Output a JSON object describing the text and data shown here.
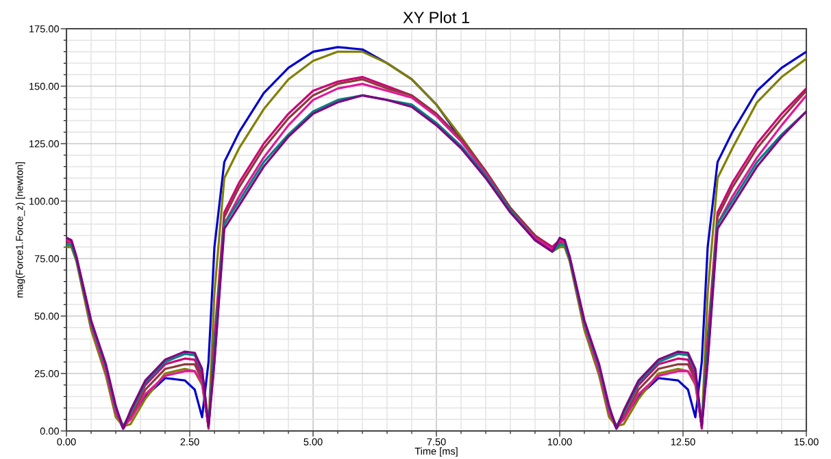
{
  "chart_data": {
    "type": "line",
    "title": "XY Plot 1",
    "xlabel": "Time [ms]",
    "ylabel": "mag(Force1.Force_z) [newton]",
    "x": [
      0,
      0.1,
      0.2,
      0.5,
      0.8,
      1.0,
      1.15,
      1.3,
      1.6,
      2.0,
      2.4,
      2.6,
      2.75,
      2.88,
      3.0,
      3.2,
      3.5,
      4.0,
      4.5,
      5.0,
      5.5,
      6.0,
      6.5,
      7.0,
      7.5,
      8.0,
      8.5,
      9.0,
      9.5,
      9.85,
      10.0,
      10.1,
      10.2,
      10.5,
      10.8,
      11.0,
      11.15,
      11.3,
      11.6,
      12.0,
      12.4,
      12.6,
      12.75,
      12.88,
      13.0,
      13.2,
      13.5,
      14.0,
      14.5,
      15.0
    ],
    "series": [
      {
        "color": "#0000cc",
        "values": [
          null,
          null,
          null,
          null,
          null,
          8,
          1,
          6,
          15,
          23,
          22,
          18,
          6,
          30,
          80,
          117,
          130,
          147,
          158,
          165,
          167,
          166,
          160,
          153,
          142,
          127,
          112,
          96,
          84,
          80,
          83,
          83,
          75,
          45,
          25,
          8,
          1,
          6,
          15,
          23,
          22,
          18,
          6,
          30,
          80,
          117,
          130,
          148,
          158,
          165
        ]
      },
      {
        "color": "#808000",
        "values": [
          80,
          80,
          74,
          44,
          24,
          6,
          2,
          3,
          14,
          25,
          27,
          26,
          20,
          2,
          60,
          110,
          123,
          140,
          153,
          161,
          165,
          165,
          160,
          153,
          142,
          128,
          113,
          97,
          85,
          78,
          80,
          80,
          74,
          44,
          24,
          6,
          2,
          3,
          14,
          25,
          27,
          26,
          20,
          2,
          60,
          110,
          123,
          143,
          154,
          162
        ]
      },
      {
        "color": "#cc0077",
        "values": [
          84,
          83,
          76,
          48,
          28,
          10,
          1,
          8,
          20,
          29,
          31.5,
          31,
          24,
          1,
          40,
          95,
          108,
          125,
          138,
          148,
          152,
          154,
          150,
          146,
          138,
          127,
          113,
          97,
          85,
          80,
          83,
          83,
          76,
          48,
          28,
          10,
          1,
          8,
          20,
          29,
          31.5,
          31,
          24,
          1,
          40,
          95,
          108,
          125,
          138,
          149
        ]
      },
      {
        "color": "#8b3a3a",
        "values": [
          82,
          82,
          75,
          47,
          27,
          9,
          2,
          6,
          18,
          27,
          29,
          29,
          22,
          2,
          35,
          93,
          106,
          123,
          136,
          146,
          151,
          153,
          149,
          146,
          138,
          127,
          113,
          97,
          85,
          79,
          82,
          82,
          75,
          47,
          27,
          9,
          2,
          6,
          18,
          27,
          29,
          29,
          22,
          2,
          35,
          93,
          106,
          123,
          136,
          148
        ]
      },
      {
        "color": "#e0189a",
        "values": [
          83,
          82,
          75,
          46,
          26,
          8,
          2,
          5,
          16,
          24,
          26,
          26,
          21,
          2,
          30,
          90,
          102,
          119,
          133,
          144,
          149,
          151,
          148,
          145,
          137,
          126,
          112,
          96,
          84,
          79,
          83,
          82,
          75,
          46,
          26,
          8,
          2,
          5,
          16,
          24,
          26,
          26,
          21,
          2,
          30,
          90,
          102,
          119,
          133,
          146
        ]
      },
      {
        "color": "#008080",
        "values": [
          81,
          81,
          75,
          47,
          28,
          10,
          2,
          8,
          21,
          30,
          33.5,
          33,
          26,
          3,
          35,
          90,
          100,
          117,
          129,
          139,
          144,
          146,
          144,
          142,
          134,
          124,
          111,
          96,
          83,
          78,
          81,
          81,
          75,
          47,
          28,
          10,
          2,
          8,
          21,
          30,
          33.5,
          33,
          26,
          3,
          35,
          90,
          100,
          117,
          129,
          139
        ]
      },
      {
        "color": "#800080",
        "values": [
          84,
          83,
          76,
          48,
          29,
          11,
          1,
          9,
          22,
          31,
          34.5,
          34,
          27,
          2,
          30,
          88,
          98,
          115,
          128,
          138,
          143,
          146,
          144,
          141,
          133,
          123,
          110,
          95,
          83,
          78,
          84,
          83,
          76,
          48,
          29,
          11,
          1,
          9,
          22,
          31,
          34.5,
          34,
          27,
          2,
          30,
          88,
          98,
          115,
          128,
          139
        ]
      }
    ],
    "xlim": [
      0,
      15
    ],
    "xticks": [
      {
        "value": 0,
        "label": "0.00"
      },
      {
        "value": 0.5,
        "label": null
      },
      {
        "value": 1,
        "label": null
      },
      {
        "value": 1.5,
        "label": null
      },
      {
        "value": 2,
        "label": null
      },
      {
        "value": 2.5,
        "label": "2.50"
      },
      {
        "value": 3,
        "label": null
      },
      {
        "value": 3.5,
        "label": null
      },
      {
        "value": 4,
        "label": null
      },
      {
        "value": 4.5,
        "label": null
      },
      {
        "value": 5,
        "label": "5.00"
      },
      {
        "value": 5.5,
        "label": null
      },
      {
        "value": 6,
        "label": null
      },
      {
        "value": 6.5,
        "label": null
      },
      {
        "value": 7,
        "label": null
      },
      {
        "value": 7.5,
        "label": "7.50"
      },
      {
        "value": 8,
        "label": null
      },
      {
        "value": 8.5,
        "label": null
      },
      {
        "value": 9,
        "label": null
      },
      {
        "value": 9.5,
        "label": null
      },
      {
        "value": 10,
        "label": "10.00"
      },
      {
        "value": 10.5,
        "label": null
      },
      {
        "value": 11,
        "label": null
      },
      {
        "value": 11.5,
        "label": null
      },
      {
        "value": 12,
        "label": null
      },
      {
        "value": 12.5,
        "label": "12.50"
      },
      {
        "value": 13,
        "label": null
      },
      {
        "value": 13.5,
        "label": null
      },
      {
        "value": 14,
        "label": null
      },
      {
        "value": 14.5,
        "label": null
      },
      {
        "value": 15,
        "label": "15.00"
      }
    ],
    "ylim": [
      0,
      175
    ],
    "yticks": [
      {
        "value": 0,
        "label": "0.00"
      },
      {
        "value": 5,
        "label": null
      },
      {
        "value": 10,
        "label": null
      },
      {
        "value": 15,
        "label": null
      },
      {
        "value": 20,
        "label": null
      },
      {
        "value": 25,
        "label": "25.00"
      },
      {
        "value": 30,
        "label": null
      },
      {
        "value": 35,
        "label": null
      },
      {
        "value": 40,
        "label": null
      },
      {
        "value": 45,
        "label": null
      },
      {
        "value": 50,
        "label": "50.00"
      },
      {
        "value": 55,
        "label": null
      },
      {
        "value": 60,
        "label": null
      },
      {
        "value": 65,
        "label": null
      },
      {
        "value": 70,
        "label": null
      },
      {
        "value": 75,
        "label": "75.00"
      },
      {
        "value": 80,
        "label": null
      },
      {
        "value": 85,
        "label": null
      },
      {
        "value": 90,
        "label": null
      },
      {
        "value": 95,
        "label": null
      },
      {
        "value": 100,
        "label": "100.00"
      },
      {
        "value": 105,
        "label": null
      },
      {
        "value": 110,
        "label": null
      },
      {
        "value": 115,
        "label": null
      },
      {
        "value": 120,
        "label": null
      },
      {
        "value": 125,
        "label": "125.00"
      },
      {
        "value": 130,
        "label": null
      },
      {
        "value": 135,
        "label": null
      },
      {
        "value": 140,
        "label": null
      },
      {
        "value": 145,
        "label": null
      },
      {
        "value": 150,
        "label": "150.00"
      },
      {
        "value": 155,
        "label": null
      },
      {
        "value": 160,
        "label": null
      },
      {
        "value": 165,
        "label": null
      },
      {
        "value": 170,
        "label": null
      },
      {
        "value": 175,
        "label": "175.00"
      }
    ],
    "grid": true,
    "marker": "none",
    "line_style": "solid"
  }
}
